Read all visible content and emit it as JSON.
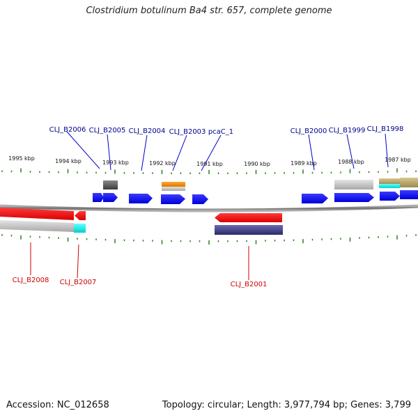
{
  "header": {
    "title": "Clostridium botulinum Ba4 str. 657, complete genome"
  },
  "footer": {
    "accession": "Accession: NC_012658",
    "summary": "Topology: circular; Length: 3,977,794 bp; Genes: 3,799"
  },
  "scale": {
    "kbp_labels": [
      "1995 kbp",
      "1994 kbp",
      "1993 kbp",
      "1992 kbp",
      "1991 kbp",
      "1990 kbp",
      "1989 kbp",
      "1988 kbp",
      "1987 kbp"
    ]
  },
  "genes_forward": [
    "CLJ_B2006",
    "CLJ_B2005",
    "CLJ_B2004",
    "CLJ_B2003",
    "pcaC_1",
    "CLJ_B2000",
    "CLJ_B1999",
    "CLJ_B1998"
  ],
  "genes_reverse": [
    "CLJ_B2008",
    "CLJ_B2007",
    "CLJ_B2001"
  ],
  "colors": {
    "forward_cds": "#0000ff",
    "reverse_cds": "#ff0000",
    "forward_label": "#00008b",
    "reverse_label": "#cc0000",
    "tick": "#2e7d1f",
    "backbone": "#8c8c8c"
  }
}
